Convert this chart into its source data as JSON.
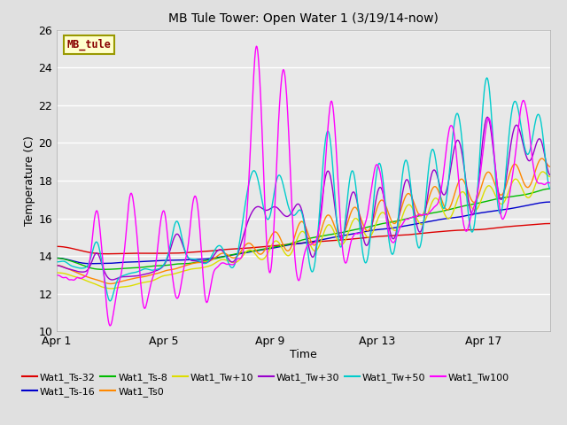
{
  "title": "MB Tule Tower: Open Water 1 (3/19/14-now)",
  "xlabel": "Time",
  "ylabel": "Temperature (C)",
  "xlim": [
    0,
    18.5
  ],
  "ylim": [
    10,
    26
  ],
  "yticks": [
    10,
    12,
    14,
    16,
    18,
    20,
    22,
    24,
    26
  ],
  "xtick_positions": [
    0,
    4,
    8,
    12,
    16
  ],
  "xtick_labels": [
    "Apr 1",
    "Apr 5",
    "Apr 9",
    "Apr 13",
    "Apr 17"
  ],
  "fig_bg": "#e0e0e0",
  "plot_bg": "#e8e8e8",
  "series": {
    "Wat1_Ts-32": {
      "color": "#dd0000",
      "label": "Wat1_Ts-32"
    },
    "Wat1_Ts-16": {
      "color": "#0000cc",
      "label": "Wat1_Ts-16"
    },
    "Wat1_Ts-8": {
      "color": "#00bb00",
      "label": "Wat1_Ts-8"
    },
    "Wat1_Ts0": {
      "color": "#ff8800",
      "label": "Wat1_Ts0"
    },
    "Wat1_Tw+10": {
      "color": "#dddd00",
      "label": "Wat1_Tw+10"
    },
    "Wat1_Tw+30": {
      "color": "#9900cc",
      "label": "Wat1_Tw+30"
    },
    "Wat1_Tw+50": {
      "color": "#00cccc",
      "label": "Wat1_Tw+50"
    },
    "Wat1_Tw100": {
      "color": "#ff00ff",
      "label": "Wat1_Tw100"
    }
  },
  "legend_box": {
    "text": "MB_tule",
    "bg": "#ffffcc",
    "border": "#999900",
    "text_color": "#880000"
  }
}
